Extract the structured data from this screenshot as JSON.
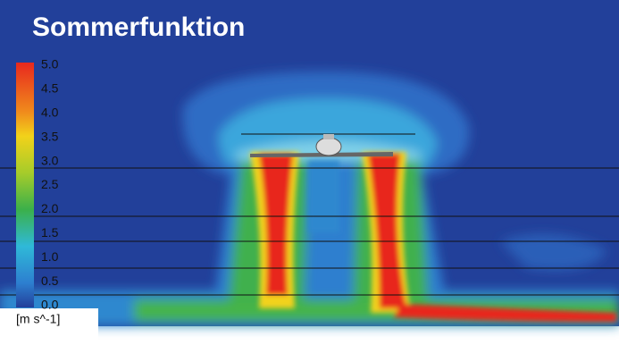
{
  "title": "Sommerfunktion",
  "legend": {
    "ticks": [
      "5.0",
      "4.5",
      "4.0",
      "3.5",
      "3.0",
      "2.5",
      "2.0",
      "1.5",
      "1.0",
      "0.5",
      "0.0"
    ],
    "unit": "[m s^-1]"
  }
}
